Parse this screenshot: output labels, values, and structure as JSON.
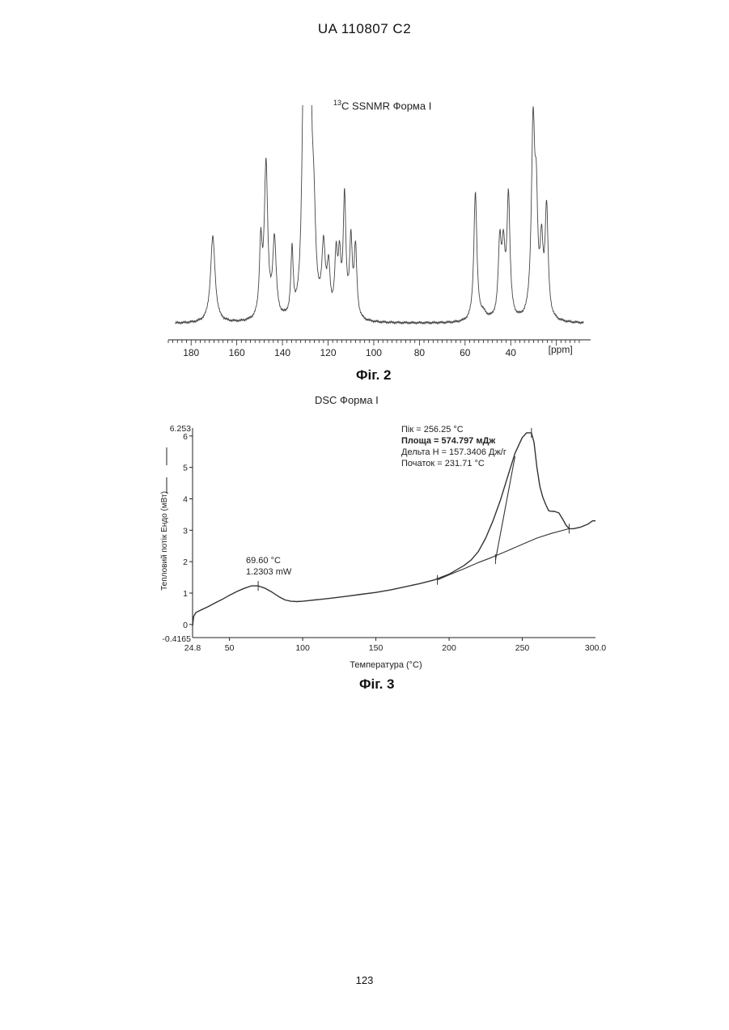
{
  "header": {
    "doc_number": "UA   110807   C2"
  },
  "page_number": "123",
  "figures": {
    "nmr": {
      "title_sup": "13",
      "title_main": "C SSNMR Форма I",
      "caption": "Фіг. 2"
    },
    "dsc": {
      "title": "DSC Форма I",
      "caption": "Фіг. 3",
      "y_top_label": "6.253",
      "y_bottom_label": "-0.4165",
      "x_left_label": "24.8",
      "x_right_label": "300.0",
      "peak_annotation": [
        "Пік = 256.25 °C",
        "Площа = 574.797 мДж",
        "Дельта H = 157.3406 Дж/г",
        "Початок = 231.71 °C"
      ],
      "low_peak_annotation": [
        "69.60 °C",
        "1.2303 mW"
      ]
    }
  },
  "chart_data": [
    {
      "type": "line",
      "title": "13C SSNMR Форма I",
      "xlabel": "",
      "x_unit_label": "[ppm]",
      "ylabel": "",
      "xlim": [
        190,
        5
      ],
      "x_reversed": true,
      "x_ticks": [
        180,
        160,
        140,
        120,
        100,
        80,
        60,
        40
      ],
      "grid": false,
      "y_axis_shown": false,
      "series": [
        {
          "peaks": [
            {
              "ppm": 170.5,
              "height": 0.41,
              "width": 1.2
            },
            {
              "ppm": 149.5,
              "height": 0.34,
              "width": 0.7
            },
            {
              "ppm": 147.2,
              "height": 0.73,
              "width": 0.9
            },
            {
              "ppm": 143.5,
              "height": 0.37,
              "width": 0.9
            },
            {
              "ppm": 135.8,
              "height": 0.31,
              "width": 0.6
            },
            {
              "ppm": 130.8,
              "height": 0.97,
              "width": 0.9
            },
            {
              "ppm": 129.2,
              "height": 0.62,
              "width": 0.9
            },
            {
              "ppm": 127.8,
              "height": 1.0,
              "width": 0.8
            },
            {
              "ppm": 126.3,
              "height": 0.42,
              "width": 1.0
            },
            {
              "ppm": 122.0,
              "height": 0.32,
              "width": 0.9
            },
            {
              "ppm": 119.8,
              "height": 0.22,
              "width": 0.8
            },
            {
              "ppm": 116.5,
              "height": 0.28,
              "width": 0.7
            },
            {
              "ppm": 115.0,
              "height": 0.26,
              "width": 0.7
            },
            {
              "ppm": 112.8,
              "height": 0.57,
              "width": 0.7
            },
            {
              "ppm": 110.0,
              "height": 0.36,
              "width": 0.7
            },
            {
              "ppm": 108.0,
              "height": 0.33,
              "width": 0.7
            },
            {
              "ppm": 55.5,
              "height": 0.61,
              "width": 0.8
            },
            {
              "ppm": 52.0,
              "height": 0.03,
              "width": 2.0
            },
            {
              "ppm": 44.8,
              "height": 0.35,
              "width": 0.8
            },
            {
              "ppm": 43.2,
              "height": 0.3,
              "width": 0.8
            },
            {
              "ppm": 41.0,
              "height": 0.58,
              "width": 0.8
            },
            {
              "ppm": 30.2,
              "height": 0.91,
              "width": 0.9
            },
            {
              "ppm": 28.8,
              "height": 0.45,
              "width": 0.7
            },
            {
              "ppm": 26.5,
              "height": 0.32,
              "width": 0.8
            },
            {
              "ppm": 24.3,
              "height": 0.52,
              "width": 0.8
            }
          ]
        }
      ]
    },
    {
      "type": "line",
      "title": "DSC Форма I",
      "xlabel": "Температура (°C)",
      "ylabel": "Тепловий потік Ендо (мВт)",
      "xlim": [
        24.8,
        300.0
      ],
      "ylim": [
        -0.4165,
        6.253
      ],
      "x_ticks": [
        50,
        100,
        150,
        200,
        250
      ],
      "y_ticks": [
        0,
        1,
        2,
        3,
        4,
        5,
        6
      ],
      "grid": false,
      "series": [
        {
          "name": "curve",
          "x": [
            24.8,
            25.5,
            27,
            30,
            35,
            40,
            45,
            50,
            55,
            60,
            65,
            69.6,
            74,
            79,
            84,
            88,
            92,
            96,
            100,
            104,
            108,
            112,
            120,
            130,
            140,
            150,
            160,
            170,
            180,
            190,
            200,
            210,
            215,
            220,
            225,
            230,
            235,
            240,
            245,
            250,
            253,
            256.25,
            258,
            260,
            262,
            264,
            266,
            268,
            270,
            272,
            275,
            278,
            280,
            282,
            285,
            290,
            295,
            298,
            300
          ],
          "y": [
            -0.05,
            0.25,
            0.38,
            0.45,
            0.56,
            0.68,
            0.8,
            0.93,
            1.05,
            1.15,
            1.23,
            1.23,
            1.16,
            1.03,
            0.88,
            0.78,
            0.74,
            0.73,
            0.74,
            0.76,
            0.78,
            0.8,
            0.84,
            0.9,
            0.96,
            1.02,
            1.1,
            1.2,
            1.3,
            1.42,
            1.6,
            1.87,
            2.05,
            2.32,
            2.75,
            3.3,
            3.95,
            4.7,
            5.45,
            5.95,
            6.1,
            6.1,
            5.8,
            5.0,
            4.4,
            4.05,
            3.82,
            3.62,
            3.6,
            3.6,
            3.55,
            3.32,
            3.15,
            3.05,
            3.05,
            3.1,
            3.2,
            3.3,
            3.3
          ]
        },
        {
          "name": "baseline",
          "x": [
            192,
            200,
            210,
            220,
            230,
            240,
            250,
            260,
            270,
            282
          ],
          "y": [
            1.42,
            1.58,
            1.77,
            1.97,
            2.15,
            2.35,
            2.55,
            2.75,
            2.9,
            3.05
          ]
        },
        {
          "name": "onset-tangent",
          "x": [
            231.7,
            245
          ],
          "y": [
            2.05,
            5.35
          ]
        }
      ],
      "markers": [
        {
          "x": 69.6,
          "y": 1.23
        },
        {
          "x": 192.0,
          "y": 1.42
        },
        {
          "x": 231.7,
          "y": 2.08
        },
        {
          "x": 256.25,
          "y": 6.1
        },
        {
          "x": 282.0,
          "y": 3.05
        }
      ]
    }
  ]
}
